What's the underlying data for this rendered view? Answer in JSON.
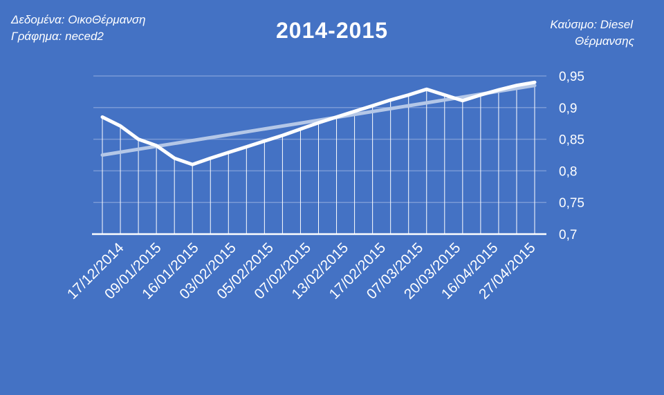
{
  "header": {
    "data_source": "Δεδομένα: ΟικοΘέρμανση",
    "chart_by": "Γράφημα: neced2",
    "fuel_line1": "Καύσιμο: Diesel",
    "fuel_line2": "Θέρμανσης"
  },
  "chart_data": {
    "type": "line",
    "title": "2014-2015",
    "x_tick_labels": [
      "17/12/2014",
      "09/01/2015",
      "16/01/2015",
      "03/02/2015",
      "05/02/2015",
      "07/02/2015",
      "13/02/2015",
      "17/02/2015",
      "07/03/2015",
      "20/03/2015",
      "16/04/2015",
      "27/04/2015"
    ],
    "series": [
      {
        "values": [
          0.885,
          0.871,
          0.85,
          0.84,
          0.82,
          0.81,
          0.82,
          0.829,
          0.838,
          0.847,
          0.856,
          0.866,
          0.876,
          0.885,
          0.894,
          0.903,
          0.912,
          0.92,
          0.929,
          0.92,
          0.911,
          0.92,
          0.928,
          0.935,
          0.94
        ]
      }
    ],
    "trendline": {
      "type": "linear",
      "start": 0.825,
      "end": 0.935
    },
    "y_axis": {
      "ticks": [
        "0,7",
        "0,75",
        "0,8",
        "0,85",
        "0,9",
        "0,95"
      ],
      "min": 0.7,
      "max": 0.95,
      "position": "right"
    },
    "drop_lines": true,
    "gridlines": true,
    "colors": {
      "background": "#4472C4",
      "line": "#FFFFFF",
      "trend": "#B4C7E7",
      "grid": "#7A9AD6"
    }
  }
}
